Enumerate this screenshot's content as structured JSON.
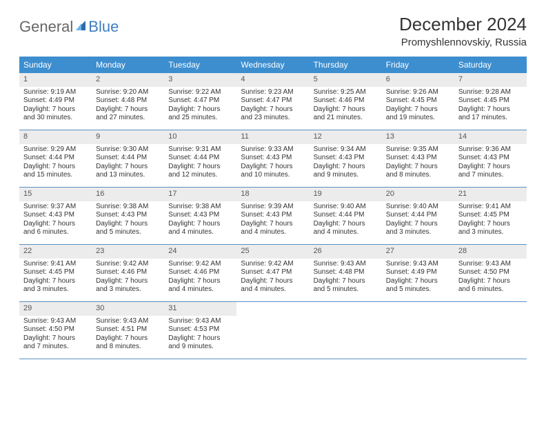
{
  "brand": {
    "part1": "General",
    "part2": "Blue"
  },
  "title": "December 2024",
  "subtitle": "Promyshlennovskiy, Russia",
  "colors": {
    "header_bg": "#3d8ecf",
    "header_text": "#ffffff",
    "daynum_bg": "#ececec",
    "row_border": "#5a8fc0",
    "text": "#333333",
    "logo_gray": "#666666",
    "logo_blue": "#3f7fbf",
    "page_bg": "#ffffff"
  },
  "dayNames": [
    "Sunday",
    "Monday",
    "Tuesday",
    "Wednesday",
    "Thursday",
    "Friday",
    "Saturday"
  ],
  "weeks": [
    [
      {
        "n": "1",
        "sr": "Sunrise: 9:19 AM",
        "ss": "Sunset: 4:49 PM",
        "dl1": "Daylight: 7 hours",
        "dl2": "and 30 minutes."
      },
      {
        "n": "2",
        "sr": "Sunrise: 9:20 AM",
        "ss": "Sunset: 4:48 PM",
        "dl1": "Daylight: 7 hours",
        "dl2": "and 27 minutes."
      },
      {
        "n": "3",
        "sr": "Sunrise: 9:22 AM",
        "ss": "Sunset: 4:47 PM",
        "dl1": "Daylight: 7 hours",
        "dl2": "and 25 minutes."
      },
      {
        "n": "4",
        "sr": "Sunrise: 9:23 AM",
        "ss": "Sunset: 4:47 PM",
        "dl1": "Daylight: 7 hours",
        "dl2": "and 23 minutes."
      },
      {
        "n": "5",
        "sr": "Sunrise: 9:25 AM",
        "ss": "Sunset: 4:46 PM",
        "dl1": "Daylight: 7 hours",
        "dl2": "and 21 minutes."
      },
      {
        "n": "6",
        "sr": "Sunrise: 9:26 AM",
        "ss": "Sunset: 4:45 PM",
        "dl1": "Daylight: 7 hours",
        "dl2": "and 19 minutes."
      },
      {
        "n": "7",
        "sr": "Sunrise: 9:28 AM",
        "ss": "Sunset: 4:45 PM",
        "dl1": "Daylight: 7 hours",
        "dl2": "and 17 minutes."
      }
    ],
    [
      {
        "n": "8",
        "sr": "Sunrise: 9:29 AM",
        "ss": "Sunset: 4:44 PM",
        "dl1": "Daylight: 7 hours",
        "dl2": "and 15 minutes."
      },
      {
        "n": "9",
        "sr": "Sunrise: 9:30 AM",
        "ss": "Sunset: 4:44 PM",
        "dl1": "Daylight: 7 hours",
        "dl2": "and 13 minutes."
      },
      {
        "n": "10",
        "sr": "Sunrise: 9:31 AM",
        "ss": "Sunset: 4:44 PM",
        "dl1": "Daylight: 7 hours",
        "dl2": "and 12 minutes."
      },
      {
        "n": "11",
        "sr": "Sunrise: 9:33 AM",
        "ss": "Sunset: 4:43 PM",
        "dl1": "Daylight: 7 hours",
        "dl2": "and 10 minutes."
      },
      {
        "n": "12",
        "sr": "Sunrise: 9:34 AM",
        "ss": "Sunset: 4:43 PM",
        "dl1": "Daylight: 7 hours",
        "dl2": "and 9 minutes."
      },
      {
        "n": "13",
        "sr": "Sunrise: 9:35 AM",
        "ss": "Sunset: 4:43 PM",
        "dl1": "Daylight: 7 hours",
        "dl2": "and 8 minutes."
      },
      {
        "n": "14",
        "sr": "Sunrise: 9:36 AM",
        "ss": "Sunset: 4:43 PM",
        "dl1": "Daylight: 7 hours",
        "dl2": "and 7 minutes."
      }
    ],
    [
      {
        "n": "15",
        "sr": "Sunrise: 9:37 AM",
        "ss": "Sunset: 4:43 PM",
        "dl1": "Daylight: 7 hours",
        "dl2": "and 6 minutes."
      },
      {
        "n": "16",
        "sr": "Sunrise: 9:38 AM",
        "ss": "Sunset: 4:43 PM",
        "dl1": "Daylight: 7 hours",
        "dl2": "and 5 minutes."
      },
      {
        "n": "17",
        "sr": "Sunrise: 9:38 AM",
        "ss": "Sunset: 4:43 PM",
        "dl1": "Daylight: 7 hours",
        "dl2": "and 4 minutes."
      },
      {
        "n": "18",
        "sr": "Sunrise: 9:39 AM",
        "ss": "Sunset: 4:43 PM",
        "dl1": "Daylight: 7 hours",
        "dl2": "and 4 minutes."
      },
      {
        "n": "19",
        "sr": "Sunrise: 9:40 AM",
        "ss": "Sunset: 4:44 PM",
        "dl1": "Daylight: 7 hours",
        "dl2": "and 4 minutes."
      },
      {
        "n": "20",
        "sr": "Sunrise: 9:40 AM",
        "ss": "Sunset: 4:44 PM",
        "dl1": "Daylight: 7 hours",
        "dl2": "and 3 minutes."
      },
      {
        "n": "21",
        "sr": "Sunrise: 9:41 AM",
        "ss": "Sunset: 4:45 PM",
        "dl1": "Daylight: 7 hours",
        "dl2": "and 3 minutes."
      }
    ],
    [
      {
        "n": "22",
        "sr": "Sunrise: 9:41 AM",
        "ss": "Sunset: 4:45 PM",
        "dl1": "Daylight: 7 hours",
        "dl2": "and 3 minutes."
      },
      {
        "n": "23",
        "sr": "Sunrise: 9:42 AM",
        "ss": "Sunset: 4:46 PM",
        "dl1": "Daylight: 7 hours",
        "dl2": "and 3 minutes."
      },
      {
        "n": "24",
        "sr": "Sunrise: 9:42 AM",
        "ss": "Sunset: 4:46 PM",
        "dl1": "Daylight: 7 hours",
        "dl2": "and 4 minutes."
      },
      {
        "n": "25",
        "sr": "Sunrise: 9:42 AM",
        "ss": "Sunset: 4:47 PM",
        "dl1": "Daylight: 7 hours",
        "dl2": "and 4 minutes."
      },
      {
        "n": "26",
        "sr": "Sunrise: 9:43 AM",
        "ss": "Sunset: 4:48 PM",
        "dl1": "Daylight: 7 hours",
        "dl2": "and 5 minutes."
      },
      {
        "n": "27",
        "sr": "Sunrise: 9:43 AM",
        "ss": "Sunset: 4:49 PM",
        "dl1": "Daylight: 7 hours",
        "dl2": "and 5 minutes."
      },
      {
        "n": "28",
        "sr": "Sunrise: 9:43 AM",
        "ss": "Sunset: 4:50 PM",
        "dl1": "Daylight: 7 hours",
        "dl2": "and 6 minutes."
      }
    ],
    [
      {
        "n": "29",
        "sr": "Sunrise: 9:43 AM",
        "ss": "Sunset: 4:50 PM",
        "dl1": "Daylight: 7 hours",
        "dl2": "and 7 minutes."
      },
      {
        "n": "30",
        "sr": "Sunrise: 9:43 AM",
        "ss": "Sunset: 4:51 PM",
        "dl1": "Daylight: 7 hours",
        "dl2": "and 8 minutes."
      },
      {
        "n": "31",
        "sr": "Sunrise: 9:43 AM",
        "ss": "Sunset: 4:53 PM",
        "dl1": "Daylight: 7 hours",
        "dl2": "and 9 minutes."
      },
      null,
      null,
      null,
      null
    ]
  ]
}
